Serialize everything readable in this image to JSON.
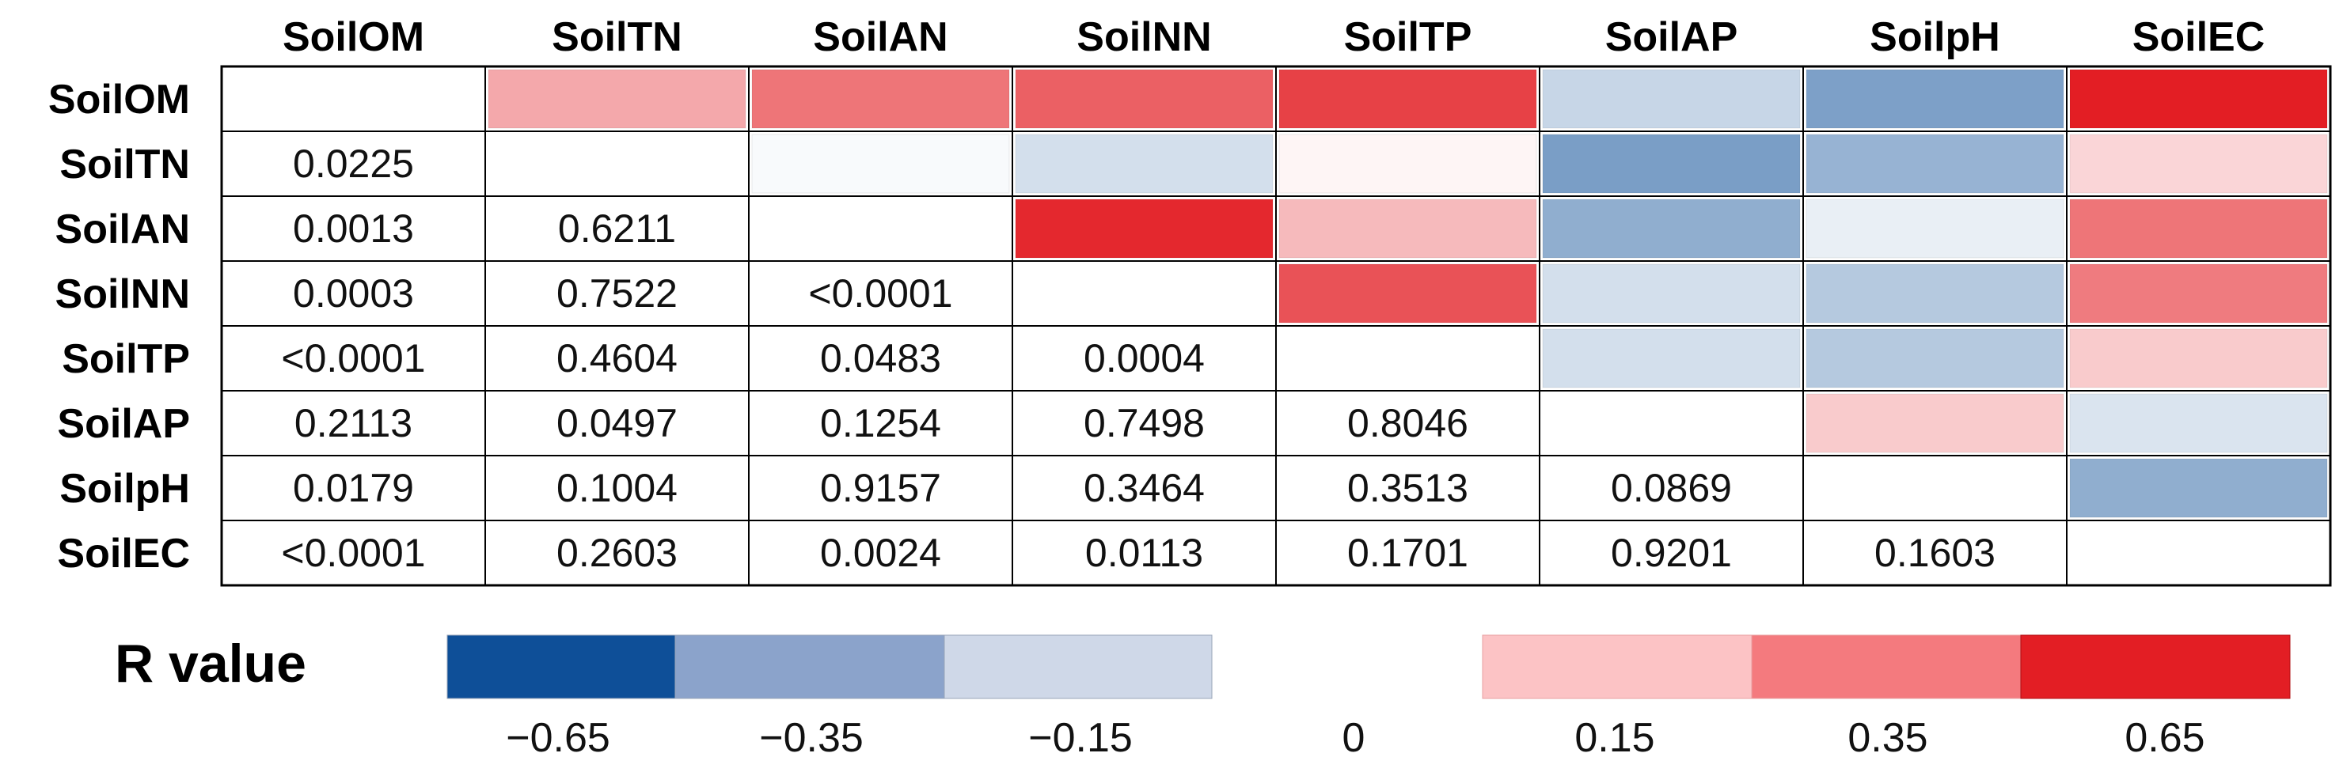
{
  "chart_data": {
    "type": "heatmap",
    "variables": [
      "SoilOM",
      "SoilTN",
      "SoilAN",
      "SoilNN",
      "SoilTP",
      "SoilAP",
      "SoilpH",
      "SoilEC"
    ],
    "upper_triangle": "R value (color)",
    "lower_triangle": "P value (text)",
    "r_values": [
      [
        null,
        0.25,
        0.4,
        0.46,
        0.55,
        -0.15,
        -0.35,
        0.67
      ],
      [
        null,
        null,
        -0.02,
        -0.12,
        0.03,
        -0.36,
        -0.28,
        0.12
      ],
      [
        null,
        null,
        null,
        0.62,
        0.2,
        -0.3,
        -0.06,
        0.4
      ],
      [
        null,
        null,
        null,
        null,
        0.5,
        -0.12,
        -0.2,
        0.38
      ],
      [
        null,
        null,
        null,
        null,
        null,
        -0.12,
        -0.2,
        0.15
      ],
      [
        null,
        null,
        null,
        null,
        null,
        null,
        0.15,
        -0.1
      ],
      [
        null,
        null,
        null,
        null,
        null,
        null,
        null,
        -0.3
      ],
      [
        null,
        null,
        null,
        null,
        null,
        null,
        null,
        null
      ]
    ],
    "p_values": [
      [
        "",
        "",
        "",
        "",
        "",
        "",
        "",
        ""
      ],
      [
        "0.0225",
        "",
        "",
        "",
        "",
        "",
        "",
        ""
      ],
      [
        "0.0013",
        "0.6211",
        "",
        "",
        "",
        "",
        "",
        ""
      ],
      [
        "0.0003",
        "0.7522",
        "<0.0001",
        "",
        "",
        "",
        "",
        ""
      ],
      [
        "<0.0001",
        "0.4604",
        "0.0483",
        "0.0004",
        "",
        "",
        "",
        ""
      ],
      [
        "0.2113",
        "0.0497",
        "0.1254",
        "0.7498",
        "0.8046",
        "",
        "",
        ""
      ],
      [
        "0.0179",
        "0.1004",
        "0.9157",
        "0.3464",
        "0.3513",
        "0.0869",
        "",
        ""
      ],
      [
        "<0.0001",
        "0.2603",
        "0.0024",
        "0.0113",
        "0.1701",
        "0.9201",
        "0.1603",
        ""
      ]
    ],
    "legend": {
      "title": "R value",
      "ticks": [
        "−0.65",
        "−0.35",
        "−0.15",
        "0",
        "0.15",
        "0.35",
        "0.65"
      ],
      "negative_swatches": [
        "#0e4f98",
        "#8ba3cb",
        "#cfd8e8"
      ],
      "positive_swatches": [
        "#fcc3c5",
        "#f47a7e",
        "#e31e24"
      ]
    },
    "colors": {
      "neg_strong": "#0e4f98",
      "neutral": "#ffffff",
      "pos_strong": "#e31e24",
      "grid": "#000000"
    }
  }
}
